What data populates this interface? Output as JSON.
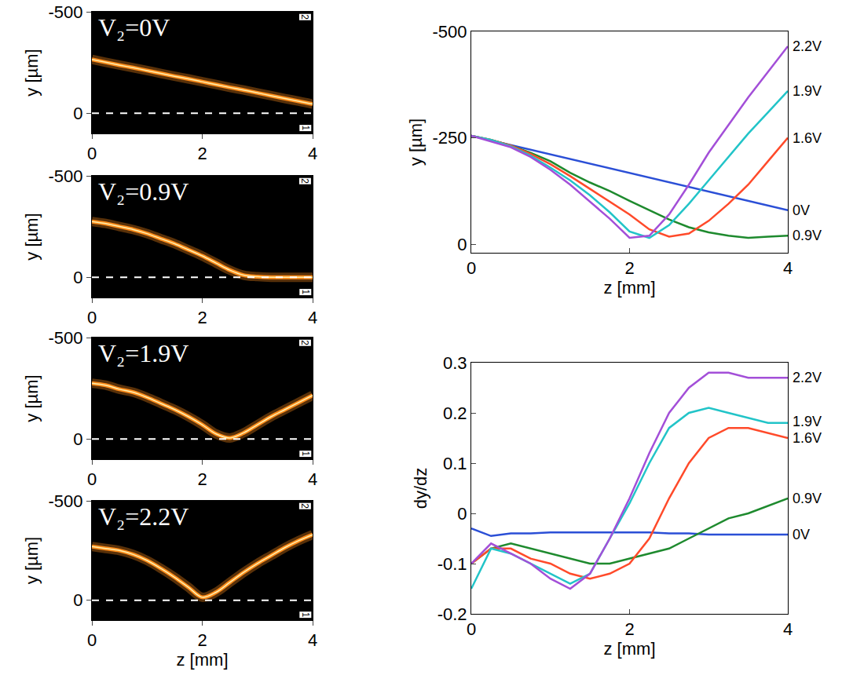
{
  "chart_data": [
    {
      "type": "image",
      "title": "V₂=0V",
      "ylabel": "y [µm]",
      "color": "#ff8c1a",
      "x": [
        0,
        0.25,
        0.5,
        0.75,
        1,
        1.25,
        1.5,
        1.75,
        2,
        2.25,
        2.5,
        2.75,
        3,
        3.25,
        3.5,
        3.75,
        4
      ],
      "values": [
        -265,
        -251,
        -237,
        -224,
        -210,
        -196,
        -182,
        -169,
        -155,
        -141,
        -127,
        -114,
        -100,
        -86,
        -72,
        -59,
        -45
      ],
      "baseline": 0,
      "electrode_labels": [
        "2",
        "1"
      ],
      "xlim": [
        0,
        4
      ],
      "xticks": [
        0,
        2,
        4
      ],
      "ylim": [
        100,
        -500
      ],
      "yticks": [
        -500,
        0
      ]
    },
    {
      "type": "image",
      "title": "V₂=0.9V",
      "ylabel": "y [µm]",
      "color": "#ff8c1a",
      "x": [
        0,
        0.25,
        0.5,
        0.75,
        1,
        1.25,
        1.5,
        1.75,
        2,
        2.25,
        2.5,
        2.75,
        3,
        3.25,
        3.5,
        3.75,
        4
      ],
      "values": [
        -275,
        -265,
        -250,
        -235,
        -215,
        -190,
        -165,
        -135,
        -105,
        -70,
        -35,
        -10,
        -3,
        0,
        0,
        0,
        0
      ],
      "baseline": 0,
      "electrode_labels": [
        "2",
        "1"
      ],
      "xlim": [
        0,
        4
      ],
      "xticks": [
        0,
        2,
        4
      ],
      "ylim": [
        100,
        -500
      ],
      "yticks": [
        -500,
        0
      ]
    },
    {
      "type": "image",
      "title": "V₂=1.9V",
      "ylabel": "y [µm]",
      "color": "#ff8c1a",
      "x": [
        0,
        0.25,
        0.5,
        0.75,
        1,
        1.25,
        1.5,
        1.75,
        2,
        2.25,
        2.5,
        2.75,
        3,
        3.25,
        3.5,
        3.75,
        4
      ],
      "values": [
        -275,
        -265,
        -245,
        -230,
        -205,
        -175,
        -145,
        -110,
        -70,
        -25,
        -5,
        -30,
        -70,
        -110,
        -145,
        -180,
        -215
      ],
      "baseline": 0,
      "electrode_labels": [
        "2",
        "1"
      ],
      "xlim": [
        0,
        4
      ],
      "xticks": [
        0,
        2,
        4
      ],
      "ylim": [
        100,
        -500
      ],
      "yticks": [
        -500,
        0
      ]
    },
    {
      "type": "image",
      "title": "V₂=2.2V",
      "xlabel": "z [mm]",
      "ylabel": "y [µm]",
      "color": "#ff8c1a",
      "x": [
        0,
        0.25,
        0.5,
        0.75,
        1,
        1.25,
        1.5,
        1.75,
        2,
        2.25,
        2.5,
        2.75,
        3,
        3.25,
        3.5,
        3.75,
        4
      ],
      "values": [
        -270,
        -260,
        -250,
        -230,
        -200,
        -160,
        -115,
        -65,
        -15,
        -40,
        -90,
        -140,
        -185,
        -225,
        -265,
        -300,
        -330
      ],
      "baseline": 0,
      "electrode_labels": [
        "2",
        "1"
      ],
      "xlim": [
        0,
        4
      ],
      "xticks": [
        0,
        2,
        4
      ],
      "ylim": [
        100,
        -500
      ],
      "yticks": [
        -500,
        0
      ]
    },
    {
      "type": "line",
      "xlabel": "z [mm]",
      "ylabel": "y [µm]",
      "legend": "right",
      "x": [
        0,
        0.25,
        0.5,
        0.75,
        1,
        1.25,
        1.5,
        1.75,
        2,
        2.25,
        2.5,
        2.75,
        3,
        3.25,
        3.5,
        3.75,
        4
      ],
      "series": [
        {
          "name": "0V",
          "color": "#2b4fd6",
          "values": [
            -255,
            -244,
            -234,
            -223,
            -212,
            -201,
            -190,
            -179,
            -168,
            -157,
            -146,
            -135,
            -124,
            -113,
            -102,
            -91,
            -80
          ]
        },
        {
          "name": "0.9V",
          "color": "#1e8a2e",
          "values": [
            -255,
            -245,
            -232,
            -215,
            -195,
            -168,
            -145,
            -125,
            -102,
            -80,
            -58,
            -40,
            -28,
            -20,
            -15,
            -18,
            -20
          ]
        },
        {
          "name": "1.6V",
          "color": "#ff4a2a",
          "values": [
            -255,
            -245,
            -232,
            -212,
            -188,
            -160,
            -130,
            -100,
            -70,
            -35,
            -18,
            -25,
            -55,
            -95,
            -140,
            -195,
            -250
          ]
        },
        {
          "name": "1.9V",
          "color": "#22c4c8",
          "values": [
            -255,
            -245,
            -230,
            -208,
            -180,
            -150,
            -115,
            -75,
            -30,
            -15,
            -45,
            -95,
            -150,
            -205,
            -260,
            -310,
            -360
          ]
        },
        {
          "name": "2.2V",
          "color": "#a34fd8",
          "values": [
            -255,
            -242,
            -228,
            -205,
            -175,
            -140,
            -100,
            -60,
            -15,
            -20,
            -70,
            -140,
            -215,
            -280,
            -345,
            -405,
            -465
          ]
        }
      ],
      "xlim": [
        0,
        4
      ],
      "xticks": [
        0,
        2,
        4
      ],
      "ylim": [
        20,
        -500
      ],
      "yticks": [
        -500,
        -250,
        0
      ]
    },
    {
      "type": "line",
      "xlabel": "z [mm]",
      "ylabel": "dy/dz",
      "legend": "right",
      "x": [
        0,
        0.25,
        0.5,
        0.75,
        1,
        1.25,
        1.5,
        1.75,
        2,
        2.25,
        2.5,
        2.75,
        3,
        3.25,
        3.5,
        3.75,
        4
      ],
      "series": [
        {
          "name": "0V",
          "color": "#2b4fd6",
          "values": [
            -0.03,
            -0.045,
            -0.04,
            -0.04,
            -0.038,
            -0.038,
            -0.038,
            -0.038,
            -0.038,
            -0.038,
            -0.04,
            -0.04,
            -0.042,
            -0.042,
            -0.042,
            -0.042,
            -0.042
          ]
        },
        {
          "name": "0.9V",
          "color": "#1e8a2e",
          "values": [
            -0.1,
            -0.07,
            -0.06,
            -0.07,
            -0.08,
            -0.09,
            -0.1,
            -0.1,
            -0.09,
            -0.08,
            -0.07,
            -0.05,
            -0.03,
            -0.01,
            0.0,
            0.015,
            0.03
          ]
        },
        {
          "name": "1.6V",
          "color": "#ff4a2a",
          "values": [
            -0.1,
            -0.07,
            -0.07,
            -0.09,
            -0.1,
            -0.12,
            -0.13,
            -0.12,
            -0.1,
            -0.05,
            0.03,
            0.1,
            0.15,
            0.17,
            0.17,
            0.16,
            0.15
          ]
        },
        {
          "name": "1.9V",
          "color": "#22c4c8",
          "values": [
            -0.15,
            -0.07,
            -0.08,
            -0.1,
            -0.12,
            -0.14,
            -0.12,
            -0.05,
            0.02,
            0.1,
            0.17,
            0.2,
            0.21,
            0.2,
            0.19,
            0.18,
            0.18
          ]
        },
        {
          "name": "2.2V",
          "color": "#a34fd8",
          "values": [
            -0.1,
            -0.06,
            -0.08,
            -0.1,
            -0.13,
            -0.15,
            -0.12,
            -0.05,
            0.03,
            0.12,
            0.2,
            0.25,
            0.28,
            0.28,
            0.27,
            0.27,
            0.27
          ]
        }
      ],
      "xlim": [
        0,
        4
      ],
      "xticks": [
        0,
        2,
        4
      ],
      "ylim": [
        -0.2,
        0.3
      ],
      "yticks": [
        -0.2,
        -0.1,
        0,
        0.1,
        0.2,
        0.3
      ]
    }
  ]
}
